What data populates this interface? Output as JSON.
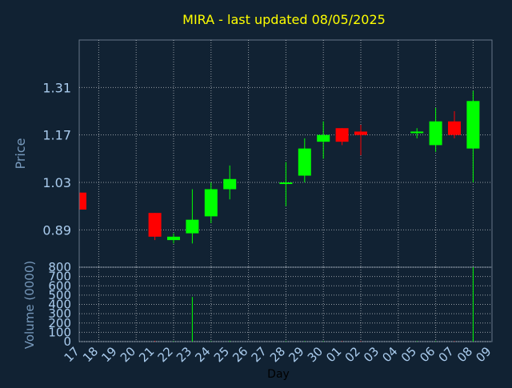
{
  "chart_data": {
    "type": "candlestick",
    "title": "MIRA - last updated 08/05/2025",
    "xlabel": "Day",
    "price_ylabel": "Price",
    "volume_ylabel": "Volume (0000)",
    "price_ticks": [
      "0.89",
      "1.03",
      "1.17",
      "1.31"
    ],
    "volume_ticks": [
      "0",
      "100",
      "200",
      "300",
      "400",
      "500",
      "600",
      "700",
      "800"
    ],
    "x_ticks": [
      "17",
      "18",
      "19",
      "20",
      "21",
      "22",
      "23",
      "24",
      "25",
      "26",
      "27",
      "28",
      "29",
      "30",
      "01",
      "02",
      "03",
      "04",
      "05",
      "06",
      "07",
      "08",
      "09"
    ],
    "price_ylim": [
      0.78,
      1.45
    ],
    "volume_ylim": [
      0,
      800
    ],
    "grid": true,
    "colors": {
      "background": "#112233",
      "up": "#00ff00",
      "down": "#ff0000",
      "title": "#ffff00",
      "axis_label": "#7799bb",
      "tick": "#aaccee",
      "grid": "#ffffff"
    },
    "candles": [
      {
        "day": "17",
        "open": 1.0,
        "high": 1.0,
        "low": 0.95,
        "close": 0.95,
        "volume": 0
      },
      {
        "day": "21",
        "open": 0.94,
        "high": 0.94,
        "low": 0.86,
        "close": 0.87,
        "volume": 8
      },
      {
        "day": "22",
        "open": 0.86,
        "high": 0.88,
        "low": 0.85,
        "close": 0.87,
        "volume": 5
      },
      {
        "day": "23",
        "open": 0.88,
        "high": 1.01,
        "low": 0.85,
        "close": 0.92,
        "volume": 480
      },
      {
        "day": "24",
        "open": 0.93,
        "high": 1.03,
        "low": 0.91,
        "close": 1.01,
        "volume": 5
      },
      {
        "day": "25",
        "open": 1.01,
        "high": 1.08,
        "low": 0.98,
        "close": 1.04,
        "volume": 8
      },
      {
        "day": "28",
        "open": 1.03,
        "high": 1.09,
        "low": 0.96,
        "close": 1.03,
        "volume": 5
      },
      {
        "day": "29",
        "open": 1.05,
        "high": 1.16,
        "low": 1.03,
        "close": 1.13,
        "volume": 5
      },
      {
        "day": "30",
        "open": 1.15,
        "high": 1.21,
        "low": 1.1,
        "close": 1.17,
        "volume": 5
      },
      {
        "day": "01",
        "open": 1.19,
        "high": 1.19,
        "low": 1.14,
        "close": 1.15,
        "volume": 5
      },
      {
        "day": "02",
        "open": 1.18,
        "high": 1.2,
        "low": 1.11,
        "close": 1.17,
        "volume": 5
      },
      {
        "day": "05",
        "open": 1.18,
        "high": 1.19,
        "low": 1.16,
        "close": 1.18,
        "volume": 5
      },
      {
        "day": "06",
        "open": 1.14,
        "high": 1.25,
        "low": 1.12,
        "close": 1.21,
        "volume": 5
      },
      {
        "day": "07",
        "open": 1.21,
        "high": 1.24,
        "low": 1.16,
        "close": 1.17,
        "volume": 5
      },
      {
        "day": "08",
        "open": 1.13,
        "high": 1.3,
        "low": 1.03,
        "close": 1.27,
        "volume": 800
      }
    ]
  }
}
